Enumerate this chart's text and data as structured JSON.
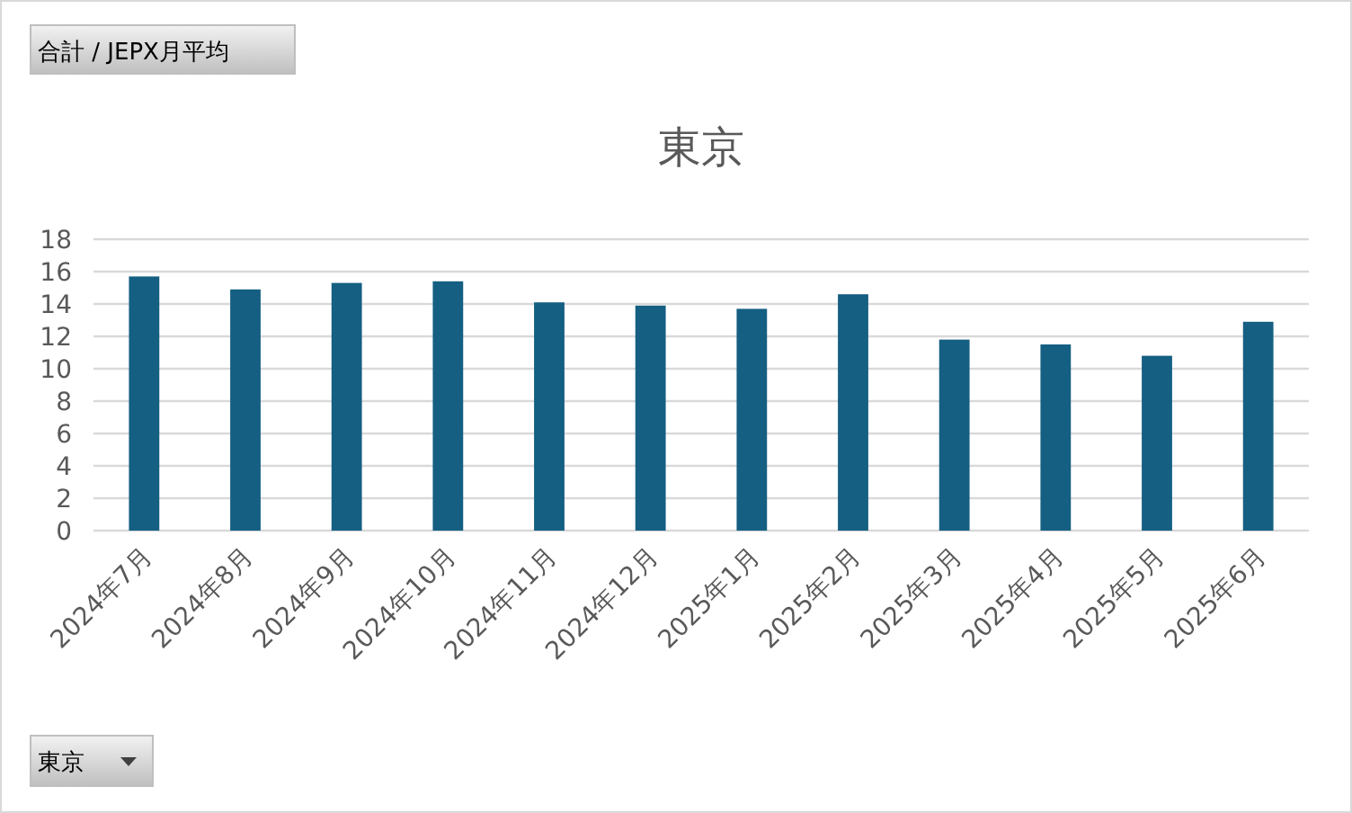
{
  "chart_data": {
    "type": "bar",
    "title": "東京",
    "categories": [
      "2024年7月",
      "2024年8月",
      "2024年9月",
      "2024年10月",
      "2024年11月",
      "2024年12月",
      "2025年1月",
      "2025年2月",
      "2025年3月",
      "2025年4月",
      "2025年5月",
      "2025年6月"
    ],
    "values": [
      15.7,
      14.9,
      15.3,
      15.4,
      14.1,
      13.9,
      13.7,
      14.6,
      11.8,
      11.5,
      10.8,
      12.9
    ],
    "color": "#145f82",
    "ylim": [
      0,
      18
    ],
    "yticks": [
      0,
      2,
      4,
      6,
      8,
      10,
      12,
      14,
      16,
      18
    ],
    "grid": "y",
    "annotations": [
      "合計 / JEPX月平均",
      "東京"
    ]
  }
}
